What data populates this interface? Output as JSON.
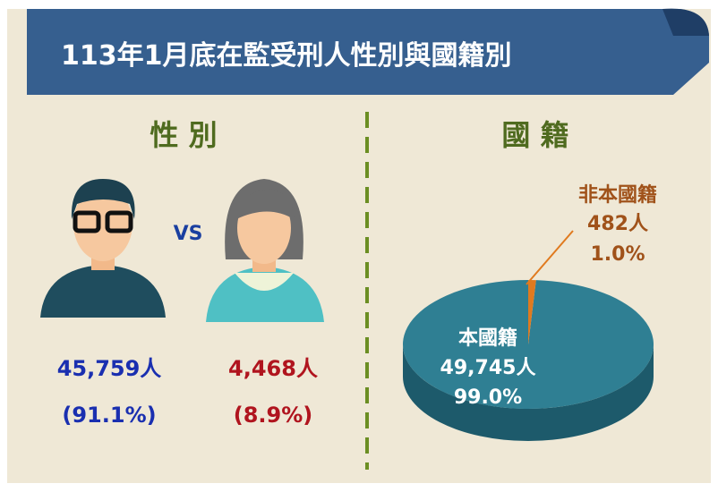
{
  "header": {
    "title": "113年1月底在監受刑人性別與國籍別"
  },
  "gender": {
    "title": "性 別",
    "vs": "VS",
    "male": {
      "count": "45,759人",
      "share": "(91.1%)"
    },
    "female": {
      "count": "4,468人",
      "share": "(8.9%)"
    }
  },
  "nationality": {
    "title": "國 籍"
  },
  "chart_data": {
    "type": "pie",
    "categories": [
      "本國籍",
      "非本國籍"
    ],
    "values": [
      99.0,
      1.0
    ],
    "value_labels": [
      "99.0%",
      "1.0%"
    ],
    "count_labels": [
      "49,745人",
      "482人"
    ],
    "colors": [
      "#2f7f93",
      "#e07a1f"
    ]
  }
}
